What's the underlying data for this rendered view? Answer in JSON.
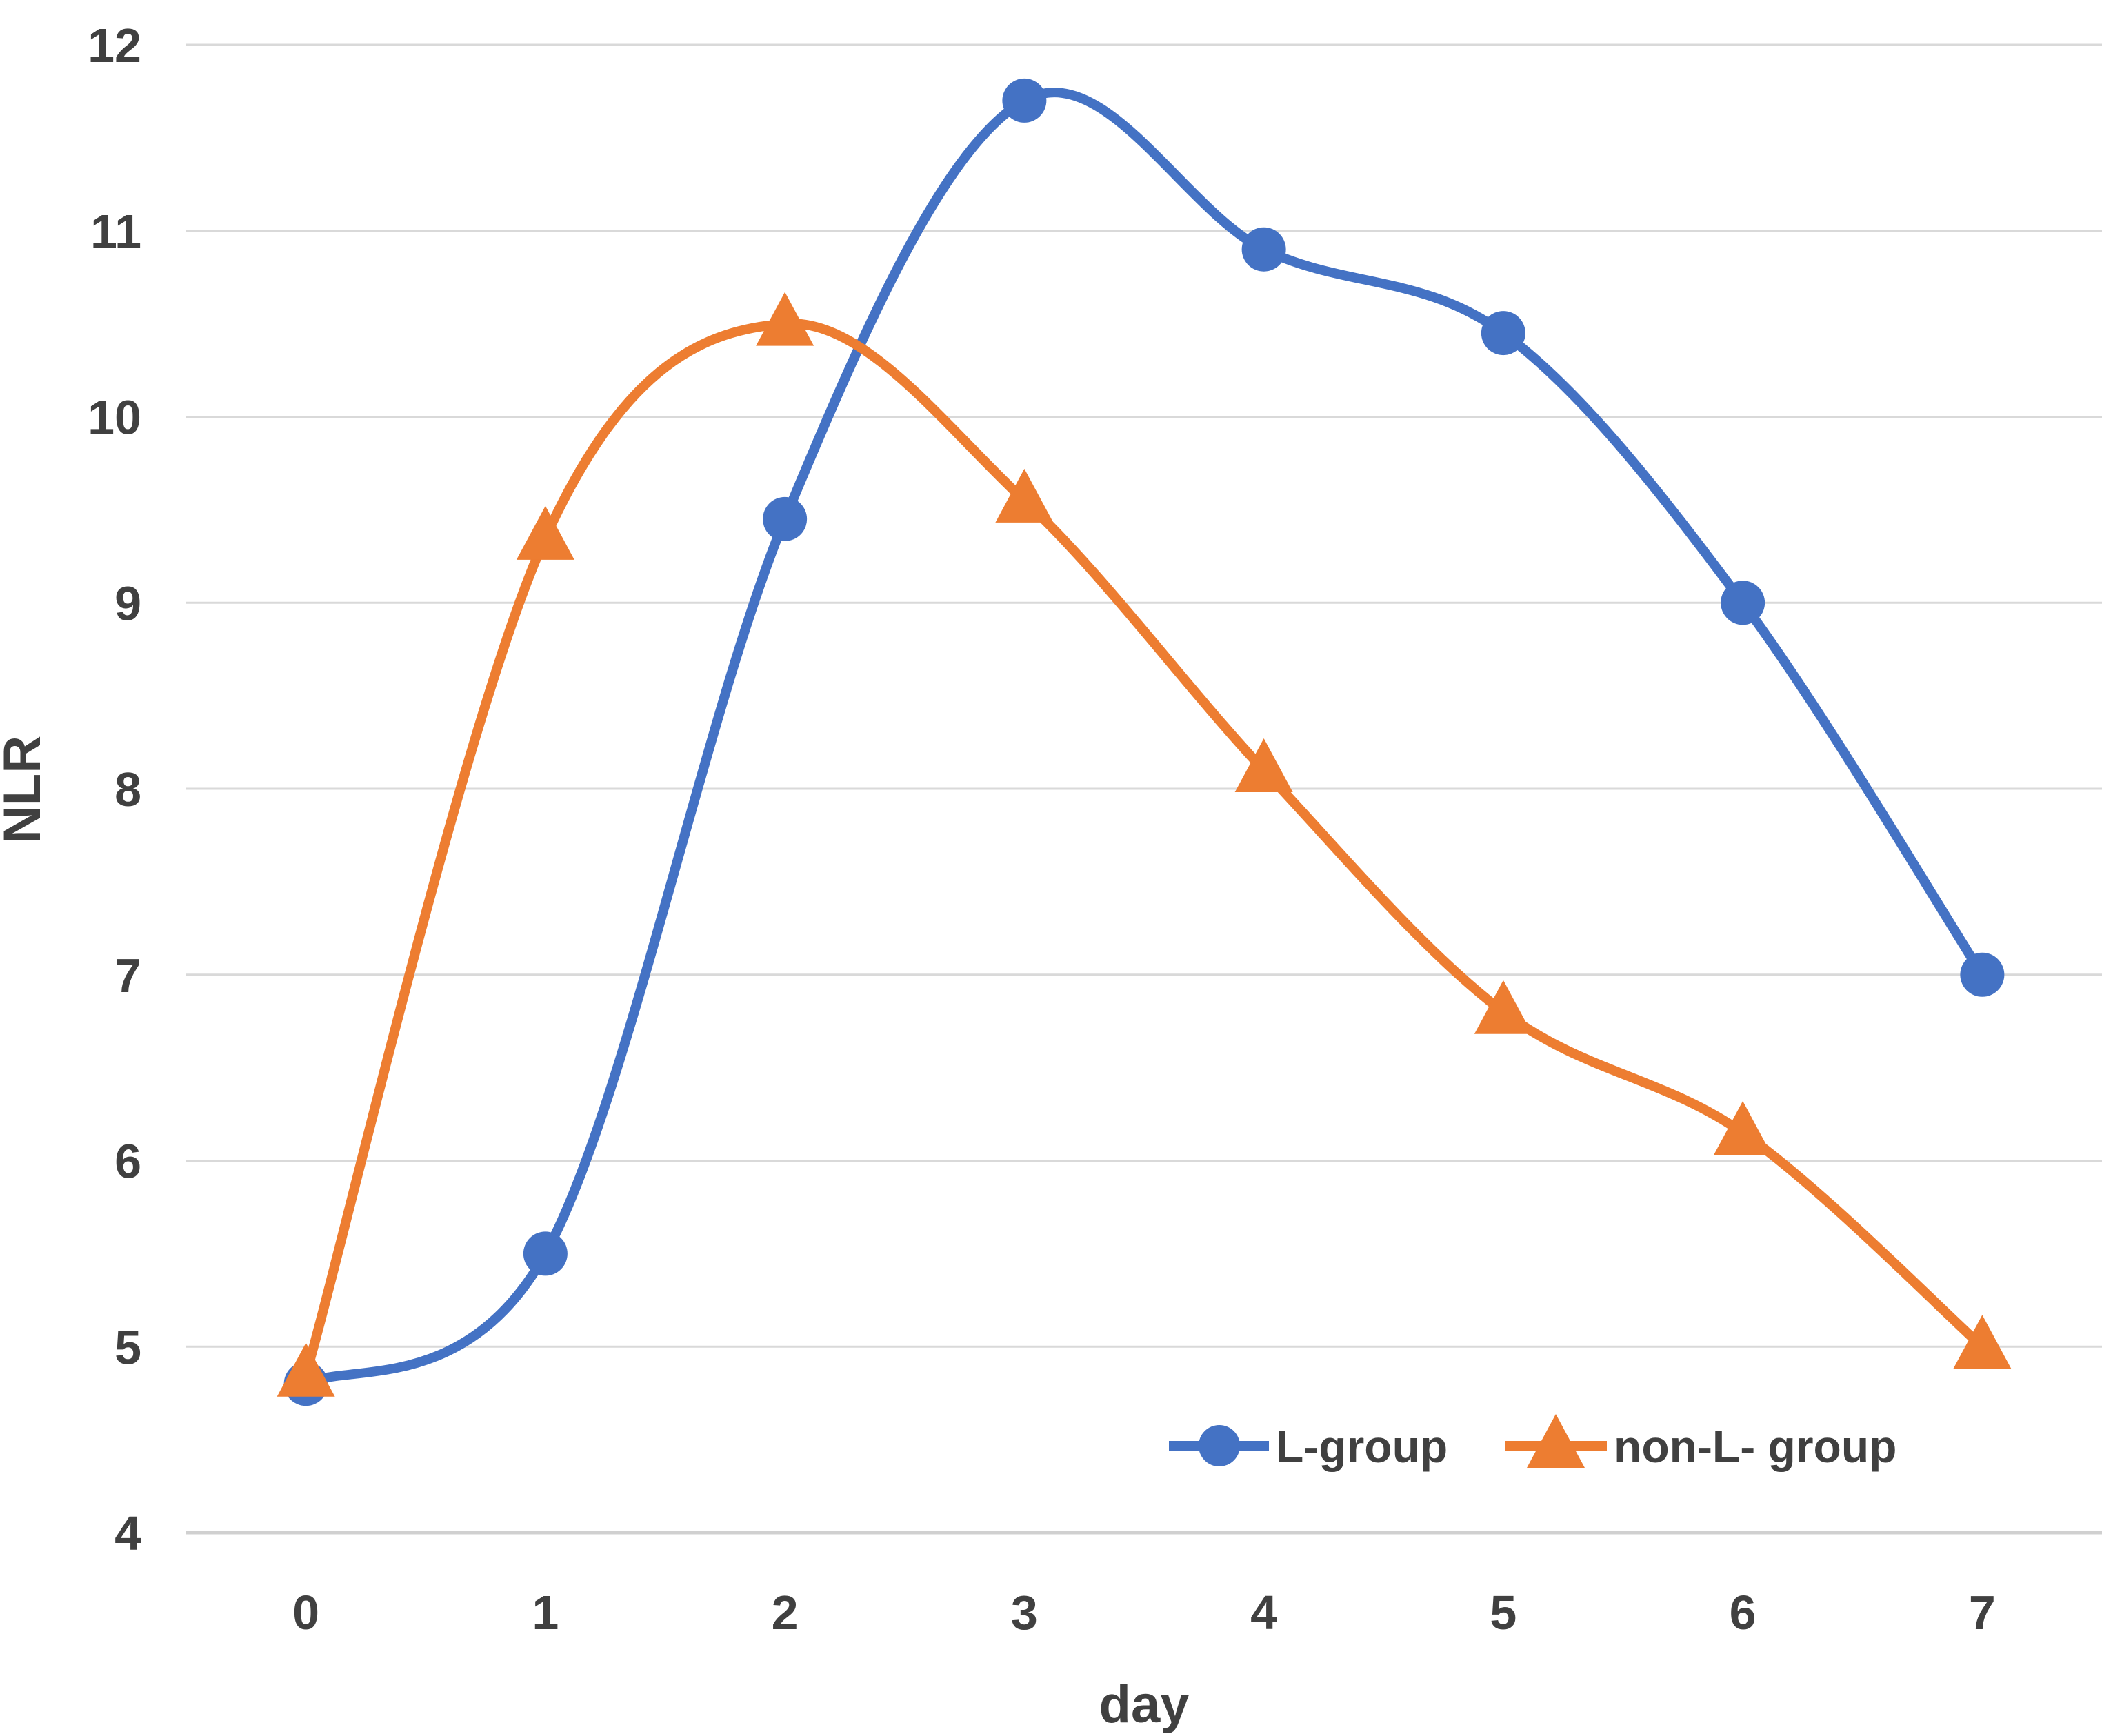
{
  "chart_data": {
    "type": "line",
    "title": "",
    "xlabel": "day",
    "ylabel": "NLR",
    "x_tick_labels": [
      "0",
      "1",
      "2",
      "3",
      "4",
      "5",
      "6",
      "7"
    ],
    "ylim": [
      4,
      12
    ],
    "ytick_step": 1,
    "grid": true,
    "line_style": "smooth",
    "legend_position": "inside-bottom-right",
    "series": [
      {
        "name": "L-group",
        "color": "#4472C4",
        "marker": "circle",
        "values": [
          4.8,
          5.5,
          9.45,
          11.7,
          10.9,
          10.45,
          9.0,
          7.0
        ]
      },
      {
        "name": "non-L- group",
        "color": "#ED7D31",
        "marker": "triangle",
        "values": [
          4.85,
          9.35,
          10.5,
          9.55,
          8.1,
          6.8,
          6.15,
          5.0
        ]
      }
    ],
    "colors": {
      "text": "#404040",
      "gridline": "#D9D9D9",
      "axis_line": "#D0D0D0"
    }
  }
}
